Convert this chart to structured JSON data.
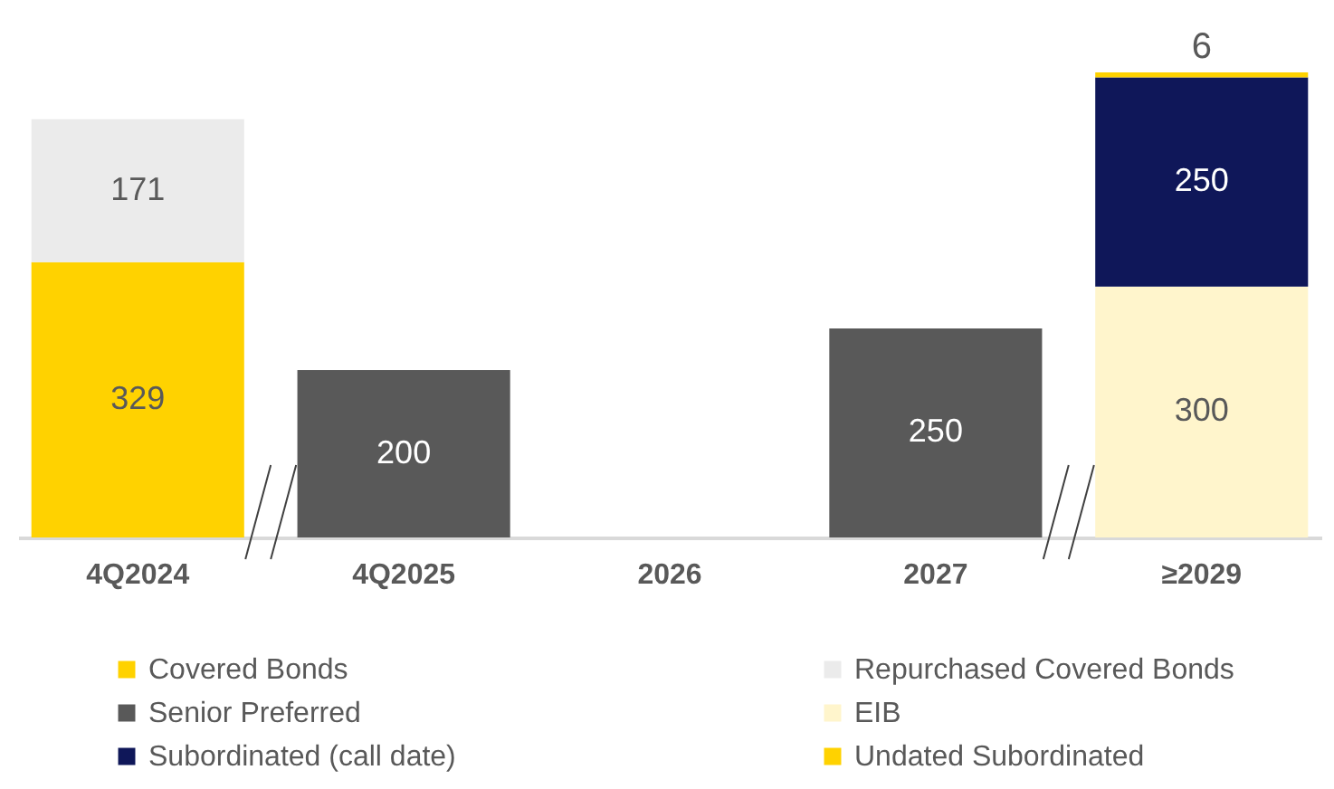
{
  "chart_data": {
    "type": "bar",
    "stacked": true,
    "data_labels": true,
    "grid": false,
    "legend": "bottom",
    "categories": [
      "4Q2024",
      "4Q2025",
      "2026",
      "2027",
      "≥2029"
    ],
    "series": [
      {
        "name": "Covered Bonds",
        "color": "#ffd200",
        "values": [
          329,
          null,
          null,
          null,
          null
        ]
      },
      {
        "name": "Repurchased Covered Bonds",
        "color": "#ebebeb",
        "values": [
          171,
          null,
          null,
          null,
          null
        ]
      },
      {
        "name": "Senior Preferred",
        "color": "#595959",
        "values": [
          null,
          200,
          null,
          250,
          null
        ]
      },
      {
        "name": "EIB",
        "color": "#fff5cc",
        "values": [
          null,
          null,
          null,
          null,
          300
        ]
      },
      {
        "name": "Subordinated (call date)",
        "color": "#0f1759",
        "values": [
          null,
          null,
          null,
          null,
          250
        ]
      },
      {
        "name": "Undated Subordinated",
        "color": "#ffd200",
        "values": [
          null,
          null,
          null,
          null,
          6
        ]
      }
    ]
  }
}
